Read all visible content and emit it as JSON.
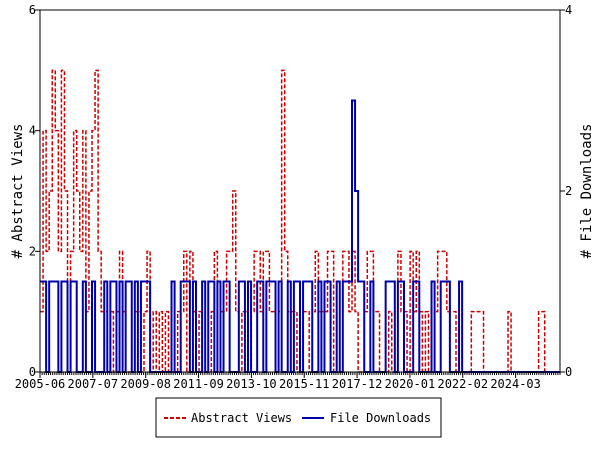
{
  "chart_data": {
    "type": "line",
    "x_tick_labels": [
      "2005-06",
      "2007-07",
      "2009-08",
      "2011-09",
      "2013-10",
      "2015-11",
      "2017-12",
      "2020-01",
      "2022-02",
      "2024-03"
    ],
    "x_range": [
      "2005-06",
      "2025-12"
    ],
    "y_left": {
      "label": "# Abstract Views",
      "ylim": [
        0,
        6
      ],
      "ticks": [
        "0",
        "2",
        "4",
        "6"
      ]
    },
    "y_right": {
      "label": "# File Downloads",
      "ylim": [
        0,
        4
      ],
      "ticks": [
        "0",
        "2",
        "4"
      ]
    },
    "grid": false,
    "legend_position": "bottom",
    "series": [
      {
        "name": "Abstract Views",
        "axis": "left",
        "color": "#cc0000",
        "style": "dashed",
        "values": [
          1,
          4,
          2,
          3,
          5,
          4,
          2,
          5,
          3,
          1,
          2,
          4,
          3,
          2,
          4,
          1,
          3,
          4,
          5,
          2,
          1,
          1,
          0,
          1,
          0,
          1,
          2,
          1,
          0,
          0,
          0,
          1,
          1,
          0,
          1,
          2,
          0,
          1,
          0,
          1,
          0,
          1,
          0,
          0,
          0,
          1,
          1,
          2,
          0,
          2,
          1,
          0,
          1,
          0,
          0,
          0,
          1,
          2,
          0,
          1,
          1,
          2,
          2,
          3,
          1,
          0,
          1,
          1,
          0,
          1,
          2,
          2,
          1,
          2,
          2,
          1,
          1,
          0,
          1,
          5,
          2,
          1,
          1,
          1,
          0,
          1,
          1,
          1,
          0,
          1,
          2,
          1,
          1,
          1,
          2,
          2,
          0,
          0,
          1,
          2,
          2,
          1,
          2,
          1,
          0,
          0,
          1,
          2,
          2,
          1,
          1,
          0,
          0,
          0,
          1,
          0,
          1,
          2,
          1,
          1,
          0,
          2,
          1,
          2,
          1,
          0,
          1,
          0,
          0,
          1,
          2,
          2,
          2,
          1,
          1,
          1,
          0,
          0,
          0,
          0,
          0,
          1,
          1,
          1,
          1,
          0,
          0,
          0,
          0,
          0,
          0,
          0,
          0,
          1,
          0,
          0,
          0,
          0,
          0,
          0,
          0,
          0,
          0,
          1,
          1,
          0,
          0,
          0,
          0,
          0
        ]
      },
      {
        "name": "File Downloads",
        "axis": "right",
        "color": "#0000aa",
        "style": "solid",
        "values": [
          1,
          1,
          0,
          1,
          1,
          1,
          0,
          1,
          1,
          0,
          1,
          1,
          0,
          0,
          1,
          0,
          0,
          1,
          0,
          0,
          0,
          1,
          0,
          1,
          1,
          0,
          1,
          0,
          1,
          1,
          0,
          1,
          0,
          1,
          1,
          1,
          0,
          0,
          0,
          0,
          0,
          0,
          0,
          1,
          0,
          0,
          1,
          1,
          1,
          0,
          1,
          0,
          0,
          1,
          0,
          1,
          1,
          0,
          1,
          0,
          1,
          1,
          0,
          0,
          0,
          1,
          1,
          0,
          1,
          0,
          0,
          1,
          1,
          0,
          1,
          1,
          1,
          0,
          1,
          0,
          0,
          1,
          0,
          1,
          1,
          0,
          1,
          1,
          1,
          0,
          0,
          1,
          0,
          1,
          1,
          0,
          0,
          1,
          0,
          1,
          1,
          1,
          3,
          2,
          1,
          1,
          0,
          0,
          1,
          0,
          0,
          0,
          0,
          1,
          1,
          1,
          0,
          1,
          1,
          0,
          0,
          0,
          1,
          1,
          0,
          0,
          0,
          0,
          1,
          0,
          0,
          1,
          1,
          1,
          0,
          0,
          0,
          1,
          0,
          0,
          0,
          0,
          0,
          0,
          0,
          0,
          0,
          0,
          0,
          0,
          0,
          0,
          0,
          0,
          0,
          0,
          0,
          0,
          0,
          0,
          0,
          0,
          0,
          0,
          0,
          0,
          0,
          0,
          0,
          0
        ]
      }
    ]
  }
}
